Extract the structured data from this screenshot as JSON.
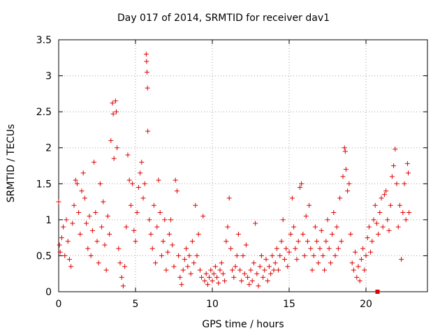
{
  "chart_data": {
    "type": "scatter",
    "title": "Day 017 of 2014, SRMTID for receiver dav1",
    "xlabel": "GPS time / hours",
    "ylabel": "SRMTID / TECUs",
    "xlim": [
      0,
      24
    ],
    "ylim": [
      0,
      3.5
    ],
    "xticks": [
      0,
      5,
      10,
      15,
      20
    ],
    "yticks": [
      0,
      0.5,
      1,
      1.5,
      2,
      2.5,
      3,
      3.5
    ],
    "ytick_labels": [
      "0",
      "0.5",
      "1",
      "1.5",
      "2",
      "2.5",
      "3",
      "3.5"
    ],
    "grid": true,
    "marker": "+",
    "color": "#dd0000",
    "series": [
      {
        "name": "SRMTID",
        "points": [
          [
            0.0,
            1.25
          ],
          [
            0.05,
            0.65
          ],
          [
            0.1,
            0.55
          ],
          [
            0.2,
            0.75
          ],
          [
            0.3,
            0.9
          ],
          [
            0.4,
            0.5
          ],
          [
            0.5,
            1.0
          ],
          [
            0.6,
            0.7
          ],
          [
            0.7,
            0.45
          ],
          [
            0.8,
            0.35
          ],
          [
            0.9,
            0.95
          ],
          [
            1.0,
            1.2
          ],
          [
            1.1,
            1.55
          ],
          [
            1.2,
            1.5
          ],
          [
            1.3,
            1.1
          ],
          [
            1.4,
            0.8
          ],
          [
            1.5,
            1.4
          ],
          [
            1.6,
            1.65
          ],
          [
            1.7,
            1.3
          ],
          [
            1.8,
            0.95
          ],
          [
            1.9,
            0.6
          ],
          [
            2.0,
            1.05
          ],
          [
            2.1,
            0.5
          ],
          [
            2.2,
            0.85
          ],
          [
            2.3,
            1.8
          ],
          [
            2.4,
            1.1
          ],
          [
            2.5,
            0.7
          ],
          [
            2.6,
            0.4
          ],
          [
            2.7,
            1.5
          ],
          [
            2.8,
            0.9
          ],
          [
            2.9,
            1.25
          ],
          [
            3.0,
            0.65
          ],
          [
            3.1,
            0.3
          ],
          [
            3.2,
            1.05
          ],
          [
            3.3,
            0.8
          ],
          [
            3.4,
            2.1
          ],
          [
            3.5,
            2.62
          ],
          [
            3.55,
            2.47
          ],
          [
            3.6,
            1.85
          ],
          [
            3.7,
            2.65
          ],
          [
            3.75,
            2.5
          ],
          [
            3.8,
            2.0
          ],
          [
            3.9,
            0.6
          ],
          [
            4.0,
            0.4
          ],
          [
            4.1,
            0.2
          ],
          [
            4.2,
            0.08
          ],
          [
            4.3,
            0.35
          ],
          [
            4.4,
            0.9
          ],
          [
            4.5,
            1.9
          ],
          [
            4.6,
            1.55
          ],
          [
            4.7,
            1.2
          ],
          [
            4.8,
            1.5
          ],
          [
            4.9,
            0.85
          ],
          [
            5.0,
            0.7
          ],
          [
            5.1,
            1.1
          ],
          [
            5.2,
            1.45
          ],
          [
            5.3,
            1.65
          ],
          [
            5.4,
            1.8
          ],
          [
            5.5,
            1.3
          ],
          [
            5.6,
            1.5
          ],
          [
            5.7,
            3.3
          ],
          [
            5.72,
            3.2
          ],
          [
            5.75,
            3.05
          ],
          [
            5.78,
            2.83
          ],
          [
            5.8,
            2.23
          ],
          [
            5.9,
            1.0
          ],
          [
            6.0,
            0.8
          ],
          [
            6.1,
            0.6
          ],
          [
            6.2,
            1.2
          ],
          [
            6.3,
            0.4
          ],
          [
            6.4,
            0.9
          ],
          [
            6.5,
            1.55
          ],
          [
            6.6,
            1.1
          ],
          [
            6.7,
            0.5
          ],
          [
            6.8,
            0.7
          ],
          [
            6.9,
            1.0
          ],
          [
            7.0,
            0.3
          ],
          [
            7.1,
            0.55
          ],
          [
            7.2,
            0.8
          ],
          [
            7.3,
            1.0
          ],
          [
            7.4,
            0.65
          ],
          [
            7.5,
            0.35
          ],
          [
            7.6,
            1.55
          ],
          [
            7.7,
            1.4
          ],
          [
            7.8,
            0.5
          ],
          [
            7.9,
            0.2
          ],
          [
            8.0,
            0.1
          ],
          [
            8.1,
            0.3
          ],
          [
            8.2,
            0.45
          ],
          [
            8.3,
            0.6
          ],
          [
            8.4,
            0.35
          ],
          [
            8.5,
            0.5
          ],
          [
            8.6,
            0.25
          ],
          [
            8.7,
            0.7
          ],
          [
            8.8,
            0.4
          ],
          [
            8.9,
            1.2
          ],
          [
            9.0,
            0.5
          ],
          [
            9.1,
            0.8
          ],
          [
            9.2,
            0.3
          ],
          [
            9.3,
            0.2
          ],
          [
            9.4,
            1.05
          ],
          [
            9.5,
            0.15
          ],
          [
            9.6,
            0.25
          ],
          [
            9.7,
            0.1
          ],
          [
            9.8,
            0.2
          ],
          [
            9.9,
            0.3
          ],
          [
            10.0,
            0.15
          ],
          [
            10.1,
            0.25
          ],
          [
            10.2,
            0.35
          ],
          [
            10.3,
            0.2
          ],
          [
            10.4,
            0.12
          ],
          [
            10.5,
            0.3
          ],
          [
            10.6,
            0.4
          ],
          [
            10.7,
            0.25
          ],
          [
            10.8,
            0.15
          ],
          [
            10.9,
            0.7
          ],
          [
            11.0,
            0.9
          ],
          [
            11.1,
            1.3
          ],
          [
            11.2,
            0.6
          ],
          [
            11.3,
            0.3
          ],
          [
            11.4,
            0.2
          ],
          [
            11.5,
            0.35
          ],
          [
            11.6,
            0.5
          ],
          [
            11.7,
            0.8
          ],
          [
            11.8,
            0.3
          ],
          [
            11.9,
            0.15
          ],
          [
            12.0,
            0.5
          ],
          [
            12.1,
            0.25
          ],
          [
            12.2,
            0.65
          ],
          [
            12.3,
            0.2
          ],
          [
            12.4,
            0.1
          ],
          [
            12.5,
            0.3
          ],
          [
            12.6,
            0.15
          ],
          [
            12.7,
            0.4
          ],
          [
            12.8,
            0.95
          ],
          [
            12.9,
            0.25
          ],
          [
            13.0,
            0.08
          ],
          [
            13.1,
            0.35
          ],
          [
            13.2,
            0.5
          ],
          [
            13.3,
            0.2
          ],
          [
            13.4,
            0.3
          ],
          [
            13.5,
            0.45
          ],
          [
            13.6,
            0.15
          ],
          [
            13.7,
            0.35
          ],
          [
            13.8,
            0.25
          ],
          [
            13.9,
            0.5
          ],
          [
            14.0,
            0.3
          ],
          [
            14.1,
            0.4
          ],
          [
            14.2,
            0.6
          ],
          [
            14.3,
            0.3
          ],
          [
            14.4,
            0.5
          ],
          [
            14.5,
            0.7
          ],
          [
            14.6,
            1.0
          ],
          [
            14.7,
            0.45
          ],
          [
            14.8,
            0.6
          ],
          [
            14.9,
            0.35
          ],
          [
            15.0,
            0.55
          ],
          [
            15.1,
            0.8
          ],
          [
            15.2,
            1.3
          ],
          [
            15.3,
            0.9
          ],
          [
            15.4,
            0.6
          ],
          [
            15.5,
            0.45
          ],
          [
            15.6,
            0.7
          ],
          [
            15.7,
            1.45
          ],
          [
            15.8,
            1.5
          ],
          [
            15.9,
            0.8
          ],
          [
            16.0,
            0.5
          ],
          [
            16.1,
            1.05
          ],
          [
            16.2,
            0.7
          ],
          [
            16.3,
            1.2
          ],
          [
            16.4,
            0.6
          ],
          [
            16.5,
            0.3
          ],
          [
            16.6,
            0.5
          ],
          [
            16.7,
            0.9
          ],
          [
            16.8,
            0.7
          ],
          [
            16.9,
            0.4
          ],
          [
            17.0,
            0.6
          ],
          [
            17.1,
            0.85
          ],
          [
            17.2,
            0.5
          ],
          [
            17.3,
            0.3
          ],
          [
            17.4,
            0.7
          ],
          [
            17.5,
            1.0
          ],
          [
            17.6,
            0.6
          ],
          [
            17.7,
            0.4
          ],
          [
            17.8,
            0.8
          ],
          [
            17.9,
            1.1
          ],
          [
            18.0,
            0.5
          ],
          [
            18.1,
            0.9
          ],
          [
            18.2,
            0.6
          ],
          [
            18.3,
            1.3
          ],
          [
            18.4,
            0.7
          ],
          [
            18.5,
            1.6
          ],
          [
            18.6,
            2.0
          ],
          [
            18.65,
            1.95
          ],
          [
            18.7,
            1.7
          ],
          [
            18.8,
            1.4
          ],
          [
            18.9,
            1.5
          ],
          [
            19.0,
            0.8
          ],
          [
            19.1,
            0.4
          ],
          [
            19.2,
            0.3
          ],
          [
            19.3,
            0.55
          ],
          [
            19.4,
            0.2
          ],
          [
            19.5,
            0.35
          ],
          [
            19.6,
            0.15
          ],
          [
            19.7,
            0.45
          ],
          [
            19.8,
            0.6
          ],
          [
            19.9,
            0.3
          ],
          [
            20.0,
            0.5
          ],
          [
            20.1,
            0.75
          ],
          [
            20.2,
            0.9
          ],
          [
            20.3,
            0.55
          ],
          [
            20.4,
            0.7
          ],
          [
            20.5,
            1.0
          ],
          [
            20.6,
            1.2
          ],
          [
            20.7,
            0.95
          ],
          [
            20.8,
            0.8
          ],
          [
            20.9,
            1.1
          ],
          [
            21.0,
            1.3
          ],
          [
            21.1,
            0.9
          ],
          [
            21.2,
            1.35
          ],
          [
            21.3,
            1.4
          ],
          [
            21.4,
            1.0
          ],
          [
            21.5,
            0.85
          ],
          [
            21.6,
            1.2
          ],
          [
            21.7,
            1.6
          ],
          [
            21.8,
            1.75
          ],
          [
            21.9,
            1.98
          ],
          [
            22.0,
            1.5
          ],
          [
            22.1,
            0.9
          ],
          [
            22.2,
            1.2
          ],
          [
            22.3,
            0.45
          ],
          [
            22.4,
            1.1
          ],
          [
            22.5,
            1.5
          ],
          [
            22.6,
            1.0
          ],
          [
            22.7,
            1.78
          ],
          [
            22.75,
            1.65
          ],
          [
            22.8,
            1.1
          ]
        ]
      }
    ],
    "special_marker": {
      "x": 20.75,
      "y": 0.0,
      "shape": "filled-square"
    }
  }
}
